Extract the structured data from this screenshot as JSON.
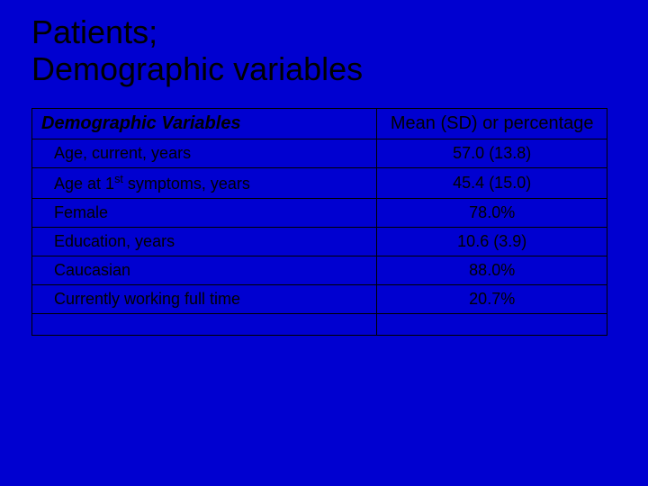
{
  "slide": {
    "title": "Patients;\nDemographic variables",
    "background_color": "#0000d0",
    "text_color": "#000000",
    "border_color": "#000000"
  },
  "table": {
    "type": "table",
    "columns": [
      "Demographic Variables",
      "Mean (SD) or percentage"
    ],
    "column_widths": [
      "60%",
      "40%"
    ],
    "rows": [
      {
        "label": "Age, current, years",
        "value": "57.0 (13.8)"
      },
      {
        "label": "Age at 1st symptoms, years",
        "label_has_superscript": true,
        "value": "45.4 (15.0)"
      },
      {
        "label": "Female",
        "value": "78.0%"
      },
      {
        "label": "Education, years",
        "value": "10.6 (3.9)"
      },
      {
        "label": "Caucasian",
        "value": "88.0%"
      },
      {
        "label": "Currently working full time",
        "value": "20.7%"
      }
    ],
    "has_empty_last_row": true,
    "title_fontsize": 36,
    "header_fontsize": 20,
    "body_fontsize": 18,
    "background_color": "#0000d0",
    "border_color": "#000000",
    "text_color": "#000000"
  }
}
